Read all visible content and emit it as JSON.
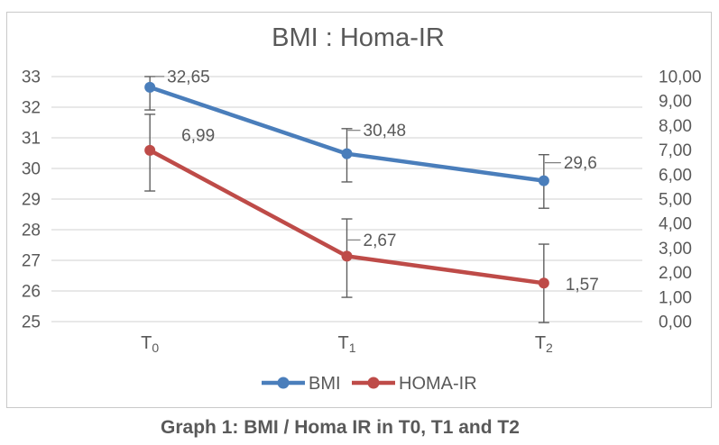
{
  "chart_data": {
    "type": "line",
    "title": "BMI : Homa-IR",
    "caption": "Graph 1: BMI / Homa IR in T0, T1 and T2",
    "categories": [
      "T0",
      "T1",
      "T2"
    ],
    "grid": true,
    "legend_position": "bottom",
    "left_axis": {
      "min": 25,
      "max": 33,
      "ticks": [
        "33",
        "32",
        "31",
        "30",
        "29",
        "28",
        "27",
        "26",
        "25"
      ]
    },
    "right_axis": {
      "min": 0,
      "max": 10,
      "ticks": [
        "10,00",
        "9,00",
        "8,00",
        "7,00",
        "6,00",
        "5,00",
        "4,00",
        "3,00",
        "2,00",
        "1,00",
        "0,00"
      ]
    },
    "series": [
      {
        "name": "BMI",
        "axis": "left",
        "color": "#4A7EBB",
        "values": [
          32.65,
          30.48,
          29.6
        ],
        "labels": [
          "32,65",
          "30,48",
          "29,6"
        ],
        "error_up": [
          0.35,
          0.82,
          0.85
        ],
        "error_down": [
          0.74,
          0.92,
          0.9
        ],
        "label_dx": [
          19,
          18,
          22
        ],
        "label_dy": [
          -12,
          -26,
          -20
        ],
        "label_leader": [
          true,
          true,
          true
        ]
      },
      {
        "name": "HOMA-IR",
        "axis": "right",
        "color": "#BE4B48",
        "values": [
          6.99,
          2.67,
          1.57
        ],
        "labels": [
          "6,99",
          "2,67",
          "1,57"
        ],
        "error_up": [
          1.47,
          1.52,
          1.59
        ],
        "error_down": [
          1.66,
          1.68,
          1.61
        ],
        "label_dx": [
          35,
          18,
          24
        ],
        "label_dy": [
          -17,
          -18,
          1
        ],
        "label_leader": [
          false,
          true,
          false
        ]
      }
    ],
    "colors": {
      "gridline": "#D9D9D9",
      "text": "#595959",
      "error_bar": "#5F5F5F",
      "leader": "#7F7F7F",
      "frame_border": "#C9C9C9",
      "caption_text": "#111111"
    }
  }
}
